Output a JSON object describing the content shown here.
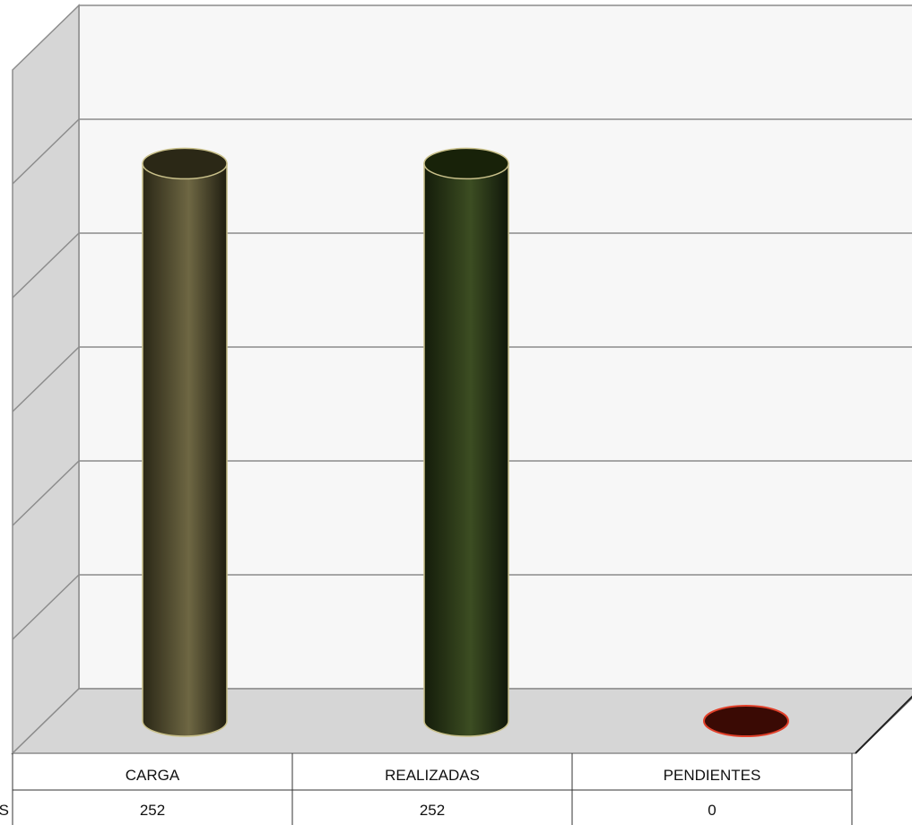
{
  "chart_data": {
    "type": "bar",
    "categories": [
      "CARGA",
      "REALIZADAS",
      "PENDIENTES"
    ],
    "series": [
      {
        "row_label_visible": "S",
        "values": [
          252,
          252,
          0
        ]
      }
    ],
    "title": "",
    "xlabel": "",
    "ylabel": "",
    "ylim": [
      0,
      300
    ],
    "grid": true,
    "style": "3d-cylinder",
    "colors": {
      "CARGA": "#6b6440",
      "REALIZADAS": "#394a1f",
      "PENDIENTES": "#3a0a04"
    }
  }
}
